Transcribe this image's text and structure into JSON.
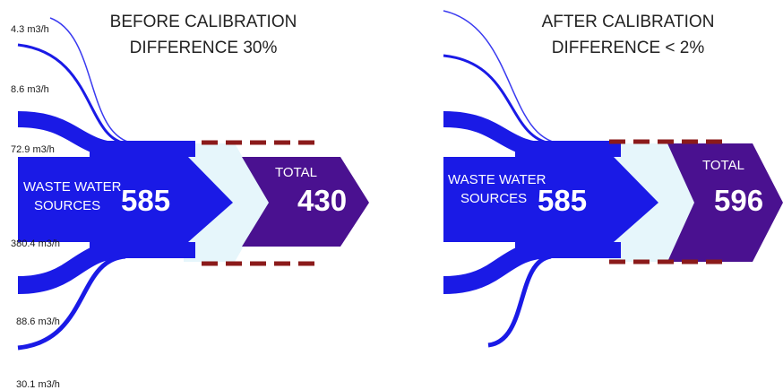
{
  "colors": {
    "flow": "#1a1ae6",
    "flow_thin": "#3a3af0",
    "gap": "#e6f6fb",
    "total": "#4a1190",
    "dash": "#8b1a1a"
  },
  "panels": [
    {
      "heading_line1": "BEFORE CALIBRATION",
      "heading_line2": "DIFFERENCE 30%",
      "source_label_line1": "WASTE WATER",
      "source_label_line2": "SOURCES",
      "source_value": "585",
      "total_label": "TOTAL",
      "total_value": "430",
      "flows": [
        {
          "label": "4.3 m3/h",
          "value": 4.3
        },
        {
          "label": "8.6 m3/h",
          "value": 8.6
        },
        {
          "label": "72.9 m3/h",
          "value": 72.9
        },
        {
          "label": "380.4 m3/h",
          "value": 380.4
        },
        {
          "label": "88.6 m3/h",
          "value": 88.6
        },
        {
          "label": "30.1 m3/h",
          "value": 30.1
        }
      ]
    },
    {
      "heading_line1": "AFTER CALIBRATION",
      "heading_line2": "DIFFERENCE < 2%",
      "source_label_line1": "WASTE WATER",
      "source_label_line2": "SOURCES",
      "source_value": "585",
      "total_label": "TOTAL",
      "total_value": "596"
    }
  ]
}
